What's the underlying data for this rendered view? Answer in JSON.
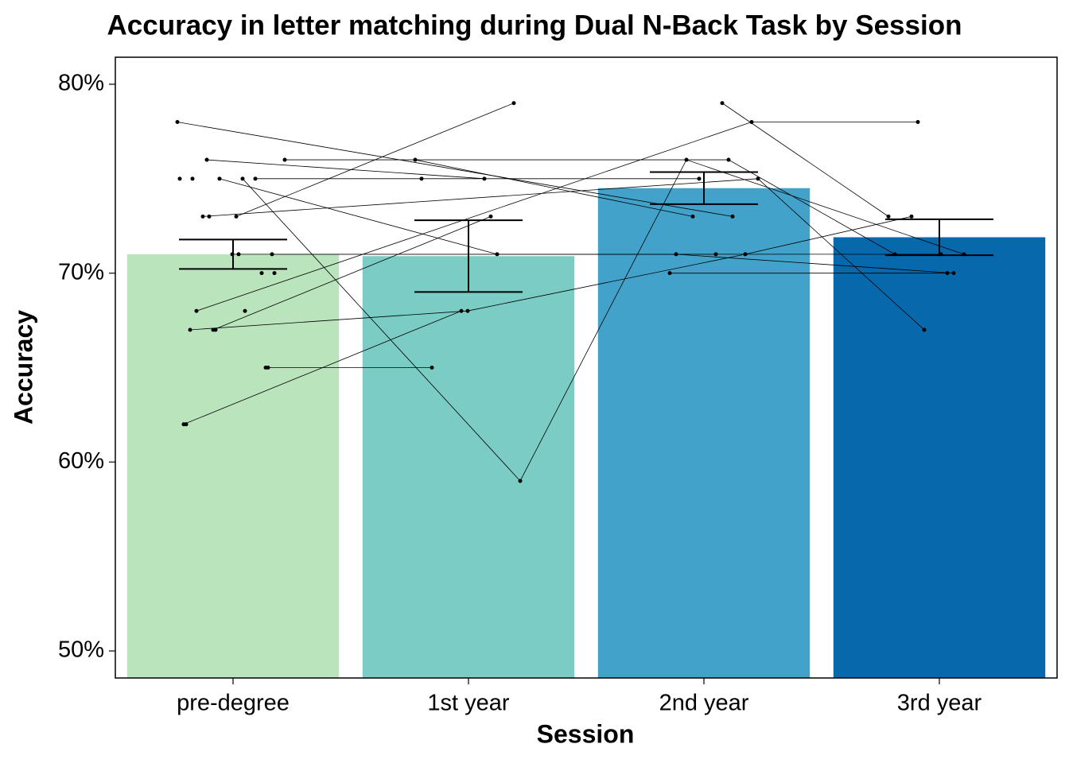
{
  "chart_data": {
    "type": "bar",
    "title": "Accuracy in letter matching during Dual N-Back Task by Session",
    "x_label": "Session",
    "y_label": "Accuracy",
    "categories": [
      "pre-degree",
      "1st year",
      "2nd year",
      "3rd year"
    ],
    "values": [
      71.0,
      70.9,
      74.5,
      71.9
    ],
    "errors": [
      0.78,
      1.9,
      0.85,
      0.95
    ],
    "colors": [
      "#bae4bc",
      "#7bccc4",
      "#43a2ca",
      "#0868ac"
    ],
    "ylim": [
      48.57,
      81.43
    ],
    "yticks": [
      {
        "value": 50,
        "label": "50%"
      },
      {
        "value": 60,
        "label": "60%"
      },
      {
        "value": 70,
        "label": "70%"
      },
      {
        "value": 80,
        "label": "80%"
      }
    ],
    "individuals": [
      [
        78,
        null,
        73,
        null
      ],
      [
        76,
        75,
        null,
        null
      ],
      [
        73,
        79,
        null,
        null
      ],
      [
        65,
        65,
        null,
        null
      ],
      [
        62,
        68,
        null,
        null
      ],
      [
        67,
        73,
        null,
        null
      ],
      [
        75,
        59,
        76,
        71
      ],
      [
        71,
        null,
        71,
        null
      ],
      [
        67,
        68,
        71,
        73
      ],
      [
        75,
        71,
        null,
        71
      ],
      [
        null,
        76,
        73,
        null
      ],
      [
        null,
        null,
        79,
        73
      ],
      [
        68,
        null,
        78,
        78
      ],
      [
        null,
        null,
        70,
        70
      ],
      [
        75,
        75,
        75,
        null
      ],
      [
        76,
        null,
        76,
        71
      ],
      [
        73,
        null,
        75,
        67
      ],
      [
        71,
        null,
        71,
        70
      ],
      [
        70,
        null,
        null,
        null
      ],
      [
        75,
        null,
        null,
        null
      ],
      [
        73,
        null,
        null,
        null
      ],
      [
        71,
        null,
        null,
        null
      ],
      [
        65,
        null,
        null,
        null
      ],
      [
        62,
        null,
        null,
        null
      ],
      [
        67,
        null,
        null,
        null
      ],
      [
        68,
        null,
        null,
        null
      ],
      [
        70,
        null,
        null,
        null
      ],
      [
        75,
        null,
        null,
        null
      ]
    ]
  }
}
